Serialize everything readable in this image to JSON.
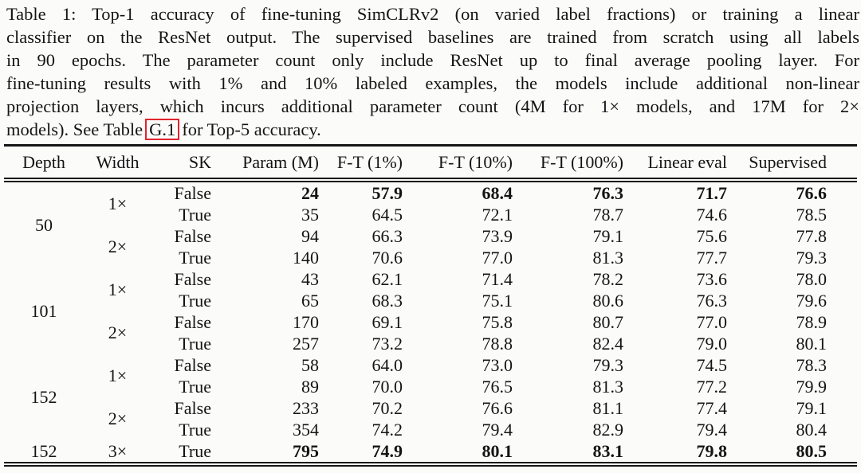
{
  "caption": {
    "lines": [
      "Table 1: Top-1 accuracy of fine-tuning SimCLRv2 (on varied label fractions) or training a linear",
      "classifier on the ResNet output. The supervised baselines are trained from scratch using all labels",
      "in 90 epochs. The parameter count only include ResNet up to final average pooling layer. For",
      "fine-tuning results with 1% and 10% labeled examples, the models include additional non-linear",
      "projection layers, which incurs additional parameter count (4M for 1× models, and 17M for 2×"
    ],
    "last_line": {
      "before": "models). See Table",
      "link": "G.1",
      "after": "for Top-5 accuracy."
    }
  },
  "colors": {
    "link_box_red": "#e0252e",
    "rule_black": "#151515"
  },
  "table": {
    "headers": [
      "Depth",
      "Width",
      "SK",
      "Param (M)",
      "F-T (1%)",
      "F-T (10%)",
      "F-T (100%)",
      "Linear eval",
      "Supervised"
    ],
    "groups": [
      {
        "depth": "50",
        "width_groups": [
          {
            "width": "1×",
            "rows": [
              {
                "sk": "False",
                "values": [
                  "24",
                  "57.9",
                  "68.4",
                  "76.3",
                  "71.7",
                  "76.6"
                ],
                "bold": true
              },
              {
                "sk": "True",
                "values": [
                  "35",
                  "64.5",
                  "72.1",
                  "78.7",
                  "74.6",
                  "78.5"
                ],
                "bold": false
              }
            ]
          },
          {
            "width": "2×",
            "rows": [
              {
                "sk": "False",
                "values": [
                  "94",
                  "66.3",
                  "73.9",
                  "79.1",
                  "75.6",
                  "77.8"
                ],
                "bold": false
              },
              {
                "sk": "True",
                "values": [
                  "140",
                  "70.6",
                  "77.0",
                  "81.3",
                  "77.7",
                  "79.3"
                ],
                "bold": false
              }
            ]
          }
        ]
      },
      {
        "depth": "101",
        "width_groups": [
          {
            "width": "1×",
            "rows": [
              {
                "sk": "False",
                "values": [
                  "43",
                  "62.1",
                  "71.4",
                  "78.2",
                  "73.6",
                  "78.0"
                ],
                "bold": false
              },
              {
                "sk": "True",
                "values": [
                  "65",
                  "68.3",
                  "75.1",
                  "80.6",
                  "76.3",
                  "79.6"
                ],
                "bold": false
              }
            ]
          },
          {
            "width": "2×",
            "rows": [
              {
                "sk": "False",
                "values": [
                  "170",
                  "69.1",
                  "75.8",
                  "80.7",
                  "77.0",
                  "78.9"
                ],
                "bold": false
              },
              {
                "sk": "True",
                "values": [
                  "257",
                  "73.2",
                  "78.8",
                  "82.4",
                  "79.0",
                  "80.1"
                ],
                "bold": false
              }
            ]
          }
        ]
      },
      {
        "depth": "152",
        "width_groups": [
          {
            "width": "1×",
            "rows": [
              {
                "sk": "False",
                "values": [
                  "58",
                  "64.0",
                  "73.0",
                  "79.3",
                  "74.5",
                  "78.3"
                ],
                "bold": false
              },
              {
                "sk": "True",
                "values": [
                  "89",
                  "70.0",
                  "76.5",
                  "81.3",
                  "77.2",
                  "79.9"
                ],
                "bold": false
              }
            ]
          },
          {
            "width": "2×",
            "rows": [
              {
                "sk": "False",
                "values": [
                  "233",
                  "70.2",
                  "76.6",
                  "81.1",
                  "77.4",
                  "79.1"
                ],
                "bold": false
              },
              {
                "sk": "True",
                "values": [
                  "354",
                  "74.2",
                  "79.4",
                  "82.9",
                  "79.4",
                  "80.4"
                ],
                "bold": false
              }
            ]
          }
        ]
      }
    ],
    "final_row": {
      "depth": "152",
      "width": "3×",
      "sk": "True",
      "values": [
        "795",
        "74.9",
        "80.1",
        "83.1",
        "79.8",
        "80.5"
      ],
      "bold": true
    }
  }
}
